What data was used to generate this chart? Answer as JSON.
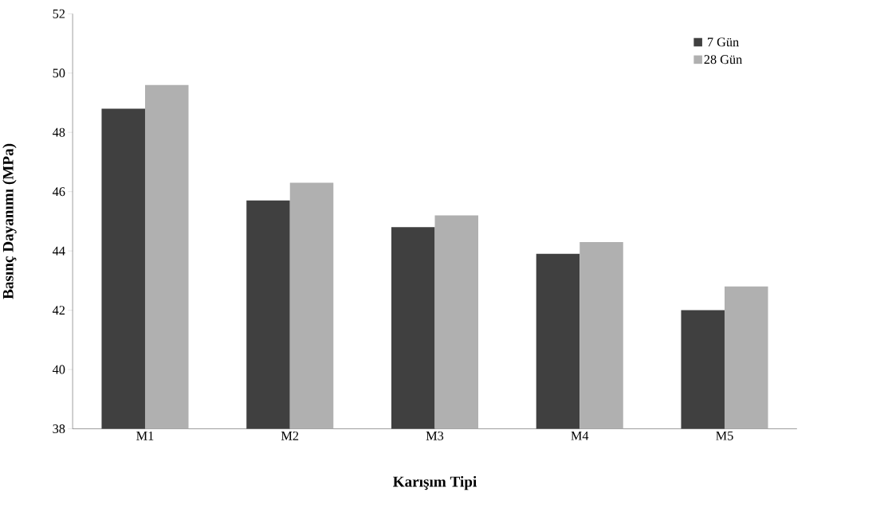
{
  "chart_data": {
    "type": "bar",
    "xlabel": "Karışım Tipi",
    "ylabel": "Basınç Dayanımı (MPa)",
    "categories": [
      "M1",
      "M2",
      "M3",
      "M4",
      "M5"
    ],
    "series": [
      {
        "name": "7 Gün",
        "color": "#404040",
        "values": [
          48.8,
          45.7,
          44.8,
          43.9,
          42.0
        ]
      },
      {
        "name": "28 Gün",
        "color": "#b0b0b0",
        "values": [
          49.6,
          46.3,
          45.2,
          44.3,
          42.8
        ]
      }
    ],
    "ylim": [
      38,
      52
    ],
    "yticks": [
      38,
      40,
      42,
      44,
      46,
      48,
      50,
      52
    ],
    "legend": "top right",
    "grid": false
  }
}
